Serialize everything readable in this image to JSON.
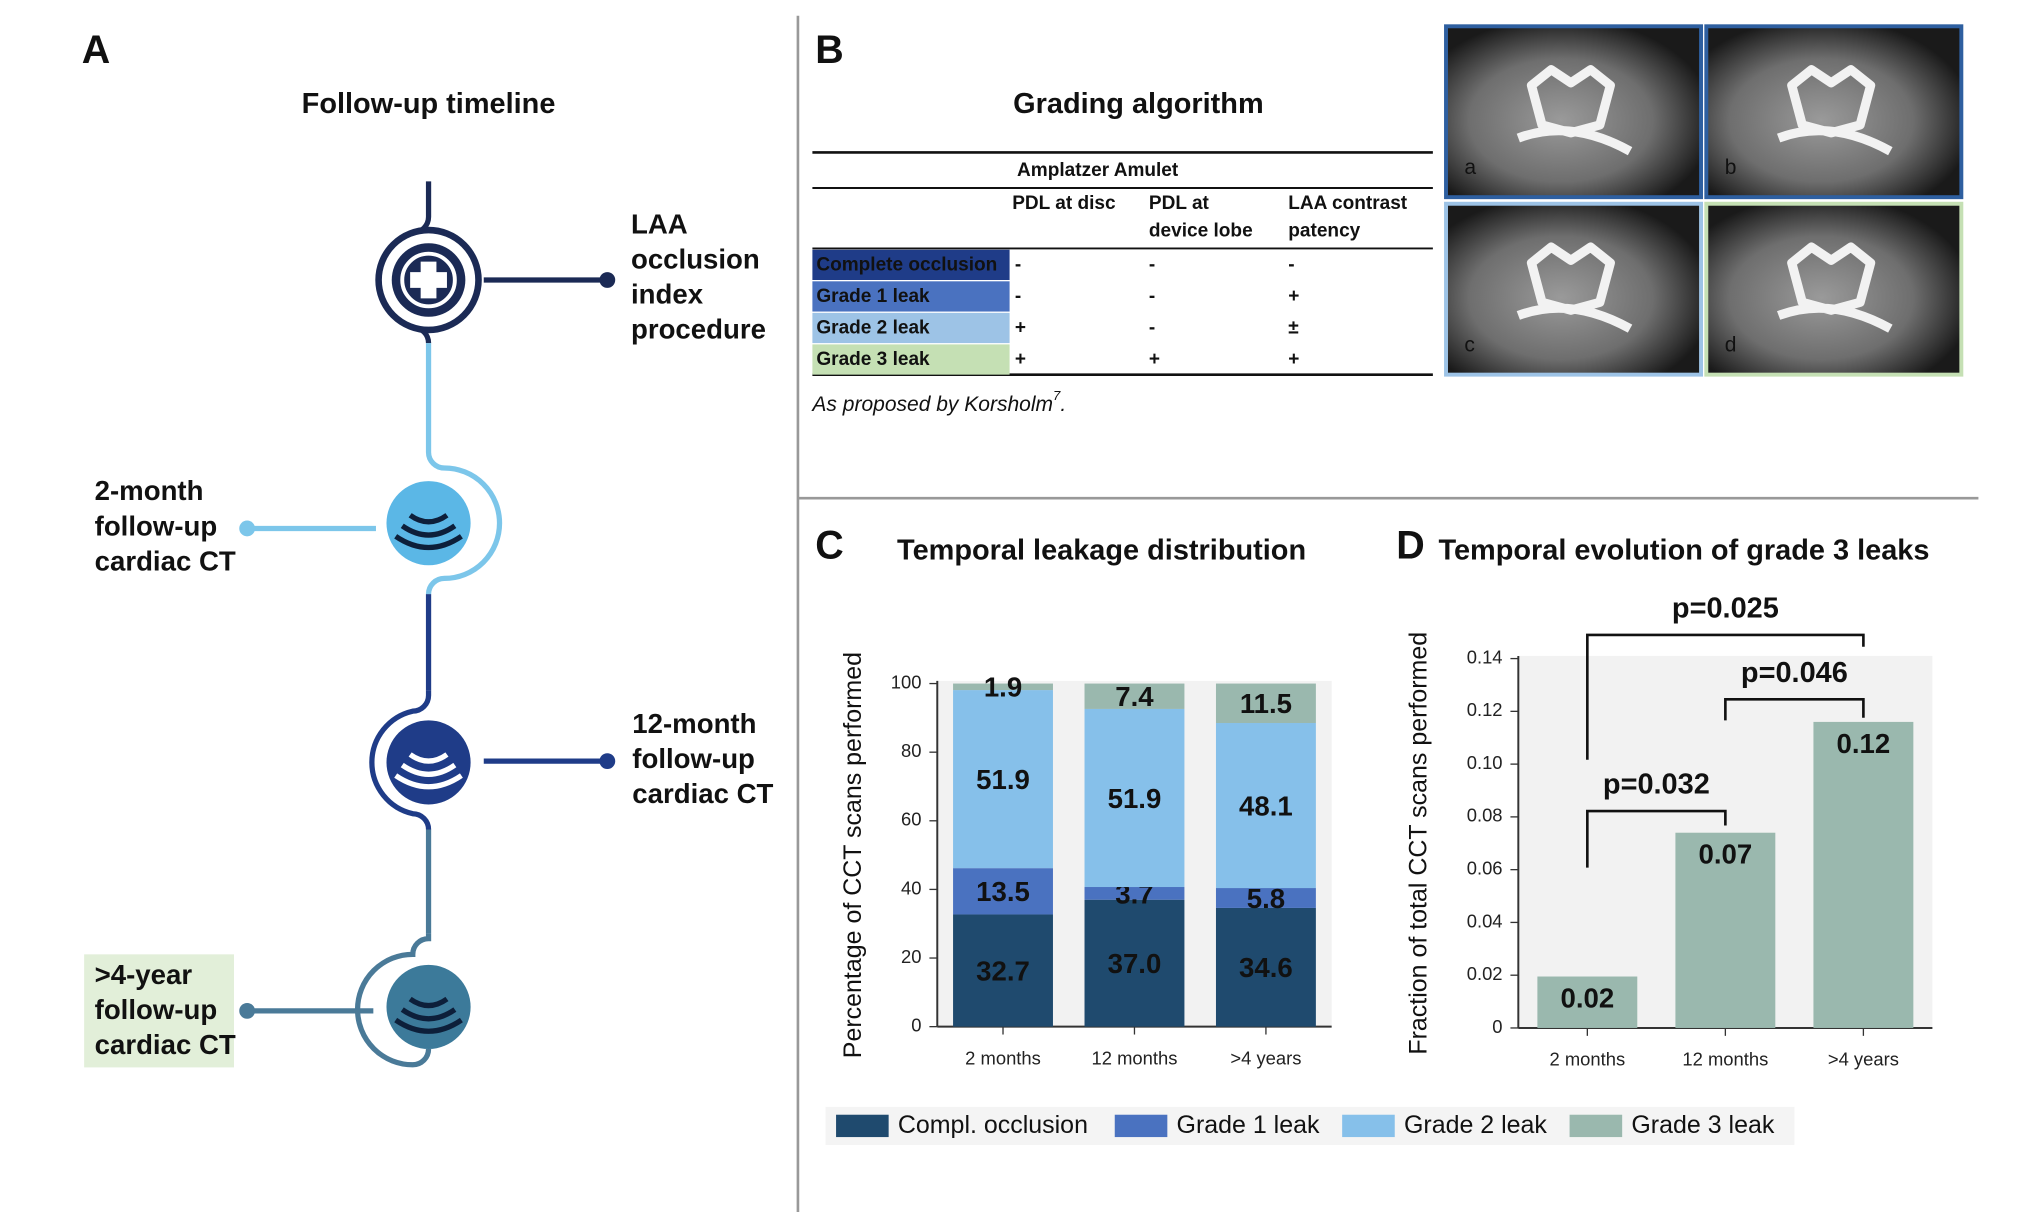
{
  "panel_a": {
    "letter": "A",
    "title": "Follow-up timeline",
    "nodes": [
      {
        "label": [
          "LAA",
          "occlusion",
          "index",
          "procedure"
        ]
      },
      {
        "label": [
          "2-month",
          "follow-up",
          "cardiac CT"
        ]
      },
      {
        "label": [
          "12-month",
          "follow-up",
          "cardiac CT"
        ]
      },
      {
        "label": [
          ">4-year",
          "follow-up",
          "cardiac CT"
        ]
      }
    ]
  },
  "panel_b": {
    "letter": "B",
    "title": "Grading algorithm",
    "table": {
      "group_header": "Amplatzer Amulet",
      "columns": [
        [
          "PDL at disc"
        ],
        [
          "PDL at",
          "device lobe"
        ],
        [
          "LAA contrast",
          "patency"
        ]
      ],
      "rows": [
        [
          "Complete occlusion",
          "-",
          "-",
          "-"
        ],
        [
          "Grade 1 leak",
          "-",
          "-",
          "+"
        ],
        [
          "Grade 2 leak",
          "+",
          "-",
          "±"
        ],
        [
          "Grade 3 leak",
          "+",
          "+",
          "+"
        ]
      ]
    },
    "note": {
      "text": "As proposed by Korsholm",
      "sup": "7",
      "end": "."
    },
    "images": [
      "a",
      "b",
      "c",
      "d"
    ]
  },
  "chart_data": [
    {
      "panel": "C",
      "type": "stacked_bar",
      "title": "Temporal leakage distribution",
      "y_label": "Percentage of CCT scans performed",
      "categories": [
        "2 months",
        "12 months",
        ">4 years"
      ],
      "series": [
        {
          "name": "Compl. occlusion",
          "color": "#1f4a6e",
          "values": [
            32.7,
            37.0,
            34.6
          ],
          "value_labels": [
            "32.7",
            "37.0",
            "34.6"
          ]
        },
        {
          "name": "Grade 1 leak",
          "color": "#4a72c0",
          "values": [
            13.5,
            3.7,
            5.8
          ]
        },
        {
          "name": "Grade 2 leak",
          "color": "#86c0ea",
          "values": [
            51.9,
            51.9,
            48.1
          ]
        },
        {
          "name": "Grade 3 leak",
          "color": "#9ab8ae",
          "values": [
            1.9,
            7.4,
            11.5
          ]
        }
      ],
      "ylim": [
        0,
        100
      ],
      "yticks": [
        0,
        20,
        40,
        60,
        80,
        100
      ],
      "legend": "bottom"
    },
    {
      "panel": "D",
      "type": "bar",
      "title": "Temporal evolution of grade 3 leaks",
      "y_label": "Fraction of total CCT scans performed",
      "categories": [
        "2 months",
        "12 months",
        ">4 years"
      ],
      "values": [
        0.0195,
        0.074,
        0.116
      ],
      "value_labels": [
        "0.02",
        "0.07",
        "0.12"
      ],
      "color": "#9ab8ae",
      "ylim": [
        0,
        0.14
      ],
      "yticks": [
        0,
        0.02,
        0.04,
        0.06,
        0.08,
        {
          "value": 0.1,
          "label": "0.10"
        },
        0.12,
        0.14
      ],
      "annotations": [
        "p=0.032",
        "p=0.046",
        "p=0.025"
      ]
    }
  ]
}
